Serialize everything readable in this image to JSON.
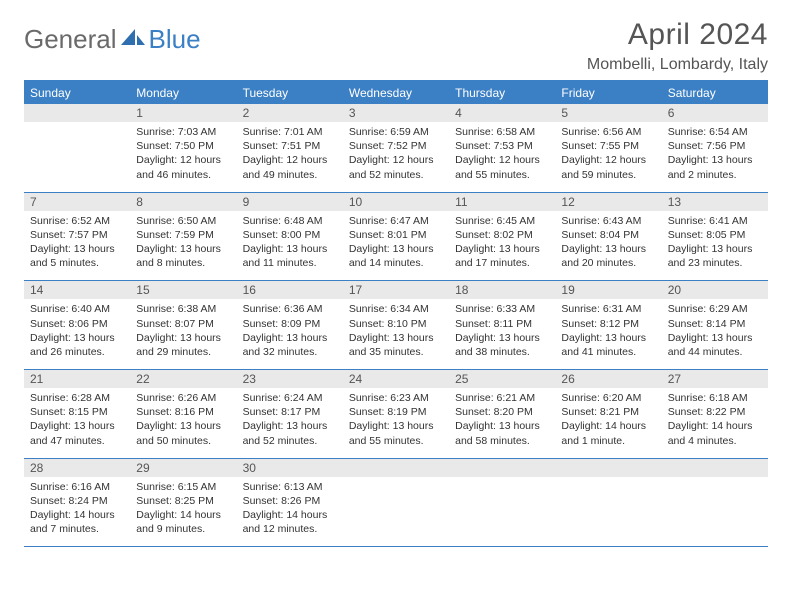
{
  "header": {
    "logo": {
      "general": "General",
      "blue": "Blue"
    },
    "month_title": "April 2024",
    "location": "Mombelli, Lombardy, Italy"
  },
  "colors": {
    "accent": "#3b7fc4",
    "daynum_bg": "#e9e9e9",
    "text": "#333333",
    "title_text": "#555555",
    "background": "#ffffff"
  },
  "dayNames": [
    "Sunday",
    "Monday",
    "Tuesday",
    "Wednesday",
    "Thursday",
    "Friday",
    "Saturday"
  ],
  "weeks": [
    [
      {
        "day": "",
        "sunrise": "",
        "sunset": "",
        "daylight": ""
      },
      {
        "day": "1",
        "sunrise": "Sunrise: 7:03 AM",
        "sunset": "Sunset: 7:50 PM",
        "daylight": "Daylight: 12 hours and 46 minutes."
      },
      {
        "day": "2",
        "sunrise": "Sunrise: 7:01 AM",
        "sunset": "Sunset: 7:51 PM",
        "daylight": "Daylight: 12 hours and 49 minutes."
      },
      {
        "day": "3",
        "sunrise": "Sunrise: 6:59 AM",
        "sunset": "Sunset: 7:52 PM",
        "daylight": "Daylight: 12 hours and 52 minutes."
      },
      {
        "day": "4",
        "sunrise": "Sunrise: 6:58 AM",
        "sunset": "Sunset: 7:53 PM",
        "daylight": "Daylight: 12 hours and 55 minutes."
      },
      {
        "day": "5",
        "sunrise": "Sunrise: 6:56 AM",
        "sunset": "Sunset: 7:55 PM",
        "daylight": "Daylight: 12 hours and 59 minutes."
      },
      {
        "day": "6",
        "sunrise": "Sunrise: 6:54 AM",
        "sunset": "Sunset: 7:56 PM",
        "daylight": "Daylight: 13 hours and 2 minutes."
      }
    ],
    [
      {
        "day": "7",
        "sunrise": "Sunrise: 6:52 AM",
        "sunset": "Sunset: 7:57 PM",
        "daylight": "Daylight: 13 hours and 5 minutes."
      },
      {
        "day": "8",
        "sunrise": "Sunrise: 6:50 AM",
        "sunset": "Sunset: 7:59 PM",
        "daylight": "Daylight: 13 hours and 8 minutes."
      },
      {
        "day": "9",
        "sunrise": "Sunrise: 6:48 AM",
        "sunset": "Sunset: 8:00 PM",
        "daylight": "Daylight: 13 hours and 11 minutes."
      },
      {
        "day": "10",
        "sunrise": "Sunrise: 6:47 AM",
        "sunset": "Sunset: 8:01 PM",
        "daylight": "Daylight: 13 hours and 14 minutes."
      },
      {
        "day": "11",
        "sunrise": "Sunrise: 6:45 AM",
        "sunset": "Sunset: 8:02 PM",
        "daylight": "Daylight: 13 hours and 17 minutes."
      },
      {
        "day": "12",
        "sunrise": "Sunrise: 6:43 AM",
        "sunset": "Sunset: 8:04 PM",
        "daylight": "Daylight: 13 hours and 20 minutes."
      },
      {
        "day": "13",
        "sunrise": "Sunrise: 6:41 AM",
        "sunset": "Sunset: 8:05 PM",
        "daylight": "Daylight: 13 hours and 23 minutes."
      }
    ],
    [
      {
        "day": "14",
        "sunrise": "Sunrise: 6:40 AM",
        "sunset": "Sunset: 8:06 PM",
        "daylight": "Daylight: 13 hours and 26 minutes."
      },
      {
        "day": "15",
        "sunrise": "Sunrise: 6:38 AM",
        "sunset": "Sunset: 8:07 PM",
        "daylight": "Daylight: 13 hours and 29 minutes."
      },
      {
        "day": "16",
        "sunrise": "Sunrise: 6:36 AM",
        "sunset": "Sunset: 8:09 PM",
        "daylight": "Daylight: 13 hours and 32 minutes."
      },
      {
        "day": "17",
        "sunrise": "Sunrise: 6:34 AM",
        "sunset": "Sunset: 8:10 PM",
        "daylight": "Daylight: 13 hours and 35 minutes."
      },
      {
        "day": "18",
        "sunrise": "Sunrise: 6:33 AM",
        "sunset": "Sunset: 8:11 PM",
        "daylight": "Daylight: 13 hours and 38 minutes."
      },
      {
        "day": "19",
        "sunrise": "Sunrise: 6:31 AM",
        "sunset": "Sunset: 8:12 PM",
        "daylight": "Daylight: 13 hours and 41 minutes."
      },
      {
        "day": "20",
        "sunrise": "Sunrise: 6:29 AM",
        "sunset": "Sunset: 8:14 PM",
        "daylight": "Daylight: 13 hours and 44 minutes."
      }
    ],
    [
      {
        "day": "21",
        "sunrise": "Sunrise: 6:28 AM",
        "sunset": "Sunset: 8:15 PM",
        "daylight": "Daylight: 13 hours and 47 minutes."
      },
      {
        "day": "22",
        "sunrise": "Sunrise: 6:26 AM",
        "sunset": "Sunset: 8:16 PM",
        "daylight": "Daylight: 13 hours and 50 minutes."
      },
      {
        "day": "23",
        "sunrise": "Sunrise: 6:24 AM",
        "sunset": "Sunset: 8:17 PM",
        "daylight": "Daylight: 13 hours and 52 minutes."
      },
      {
        "day": "24",
        "sunrise": "Sunrise: 6:23 AM",
        "sunset": "Sunset: 8:19 PM",
        "daylight": "Daylight: 13 hours and 55 minutes."
      },
      {
        "day": "25",
        "sunrise": "Sunrise: 6:21 AM",
        "sunset": "Sunset: 8:20 PM",
        "daylight": "Daylight: 13 hours and 58 minutes."
      },
      {
        "day": "26",
        "sunrise": "Sunrise: 6:20 AM",
        "sunset": "Sunset: 8:21 PM",
        "daylight": "Daylight: 14 hours and 1 minute."
      },
      {
        "day": "27",
        "sunrise": "Sunrise: 6:18 AM",
        "sunset": "Sunset: 8:22 PM",
        "daylight": "Daylight: 14 hours and 4 minutes."
      }
    ],
    [
      {
        "day": "28",
        "sunrise": "Sunrise: 6:16 AM",
        "sunset": "Sunset: 8:24 PM",
        "daylight": "Daylight: 14 hours and 7 minutes."
      },
      {
        "day": "29",
        "sunrise": "Sunrise: 6:15 AM",
        "sunset": "Sunset: 8:25 PM",
        "daylight": "Daylight: 14 hours and 9 minutes."
      },
      {
        "day": "30",
        "sunrise": "Sunrise: 6:13 AM",
        "sunset": "Sunset: 8:26 PM",
        "daylight": "Daylight: 14 hours and 12 minutes."
      },
      {
        "day": "",
        "sunrise": "",
        "sunset": "",
        "daylight": ""
      },
      {
        "day": "",
        "sunrise": "",
        "sunset": "",
        "daylight": ""
      },
      {
        "day": "",
        "sunrise": "",
        "sunset": "",
        "daylight": ""
      },
      {
        "day": "",
        "sunrise": "",
        "sunset": "",
        "daylight": ""
      }
    ]
  ]
}
